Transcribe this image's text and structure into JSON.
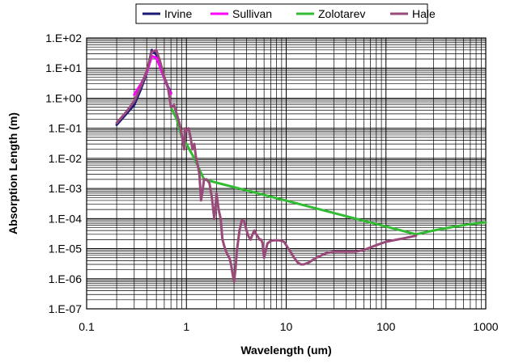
{
  "chart_data": {
    "type": "line",
    "title": "",
    "xlabel": "Wavelength (um)",
    "ylabel": "Absorption Length (m)",
    "xscale": "log",
    "yscale": "log",
    "xlim": [
      0.1,
      1000
    ],
    "ylim": [
      1e-07,
      100
    ],
    "grid": true,
    "legend_position": "top",
    "x_ticks": [
      {
        "value": 0.1,
        "label": "0.1"
      },
      {
        "value": 1,
        "label": "1"
      },
      {
        "value": 10,
        "label": "10"
      },
      {
        "value": 100,
        "label": "100"
      },
      {
        "value": 1000,
        "label": "1000"
      }
    ],
    "y_ticks": [
      {
        "value": 1e-07,
        "label": "1.E-07"
      },
      {
        "value": 1e-06,
        "label": "1.E-06"
      },
      {
        "value": 1e-05,
        "label": "1.E-05"
      },
      {
        "value": 0.0001,
        "label": "1.E-04"
      },
      {
        "value": 0.001,
        "label": "1.E-03"
      },
      {
        "value": 0.01,
        "label": "1.E-02"
      },
      {
        "value": 0.1,
        "label": "1.E-01"
      },
      {
        "value": 1,
        "label": "1.E+00"
      },
      {
        "value": 10,
        "label": "1.E+01"
      },
      {
        "value": 100,
        "label": "1.E+02"
      }
    ],
    "series": [
      {
        "name": "Irvine",
        "color": "#1a1a7a",
        "x": [
          0.2,
          0.25,
          0.3,
          0.35,
          0.4,
          0.45,
          0.5,
          0.55,
          0.6,
          0.65,
          0.7
        ],
        "y": [
          0.13,
          0.3,
          0.6,
          2.0,
          7.0,
          40,
          28,
          12,
          5,
          2.5,
          1.5
        ]
      },
      {
        "name": "Sullivan",
        "color": "#ff00ff",
        "x": [
          0.3,
          0.35,
          0.4,
          0.45,
          0.5,
          0.55,
          0.6,
          0.65,
          0.7
        ],
        "y": [
          1.3,
          3.0,
          7.0,
          25,
          22,
          10,
          4.5,
          2.3,
          1.4
        ]
      },
      {
        "name": "Zolotarev",
        "color": "#33bb33",
        "x": [
          0.7,
          0.8,
          0.9,
          1.0,
          1.2,
          1.5,
          200,
          300,
          500,
          700,
          1000
        ],
        "y": [
          0.5,
          0.2,
          0.05,
          0.03,
          0.01,
          0.002,
          3e-05,
          4e-05,
          5.5e-05,
          6.5e-05,
          7.5e-05
        ]
      },
      {
        "name": "Hale",
        "color": "#9a4a7a",
        "x": [
          0.2,
          0.25,
          0.3,
          0.35,
          0.4,
          0.45,
          0.5,
          0.55,
          0.6,
          0.65,
          0.7,
          0.75,
          0.8,
          0.85,
          0.9,
          0.95,
          0.97,
          1.0,
          1.05,
          1.1,
          1.15,
          1.2,
          1.25,
          1.3,
          1.35,
          1.4,
          1.45,
          1.5,
          1.6,
          1.7,
          1.8,
          1.9,
          1.95,
          2.0,
          2.1,
          2.2,
          2.3,
          2.4,
          2.5,
          2.6,
          2.7,
          2.8,
          2.9,
          3.0,
          3.1,
          3.2,
          3.4,
          3.6,
          3.8,
          4.0,
          4.2,
          4.4,
          4.6,
          4.8,
          5.0,
          5.2,
          5.4,
          5.6,
          5.8,
          6.0,
          6.2,
          6.5,
          7.0,
          7.5,
          8.0,
          8.5,
          9.0,
          9.5,
          10,
          11,
          12,
          13,
          14,
          15,
          17,
          20,
          25,
          30,
          40,
          50,
          60,
          70,
          80,
          100,
          150,
          200
        ],
        "y": [
          0.15,
          0.35,
          0.8,
          2.5,
          8,
          35,
          40,
          15,
          5,
          2.5,
          0.5,
          0.6,
          0.3,
          0.15,
          0.06,
          0.02,
          0.1,
          0.08,
          0.1,
          0.05,
          0.02,
          0.03,
          0.01,
          0.006,
          0.003,
          0.0004,
          0.0008,
          0.002,
          0.002,
          0.0015,
          0.0005,
          0.0001,
          0.0002,
          0.0007,
          0.0002,
          0.0001,
          2e-05,
          1.2e-05,
          8e-06,
          6e-06,
          5e-06,
          3e-06,
          1.5e-06,
          8e-07,
          2e-06,
          8e-06,
          4e-05,
          9e-05,
          8e-05,
          4e-05,
          2.5e-05,
          2e-05,
          3e-05,
          4e-05,
          3e-05,
          2.5e-05,
          2e-05,
          2e-05,
          1.5e-05,
          5e-06,
          8e-06,
          1.5e-05,
          1.8e-05,
          1.9e-05,
          1.9e-05,
          1.9e-05,
          1.8e-05,
          1.7e-05,
          1.3e-05,
          8e-06,
          5e-06,
          3.5e-06,
          3e-06,
          3e-06,
          3.5e-06,
          5e-06,
          7e-06,
          8e-06,
          8e-06,
          8e-06,
          9e-06,
          1.1e-05,
          1.3e-05,
          1.7e-05,
          2.2e-05,
          2.7e-05
        ]
      }
    ]
  }
}
